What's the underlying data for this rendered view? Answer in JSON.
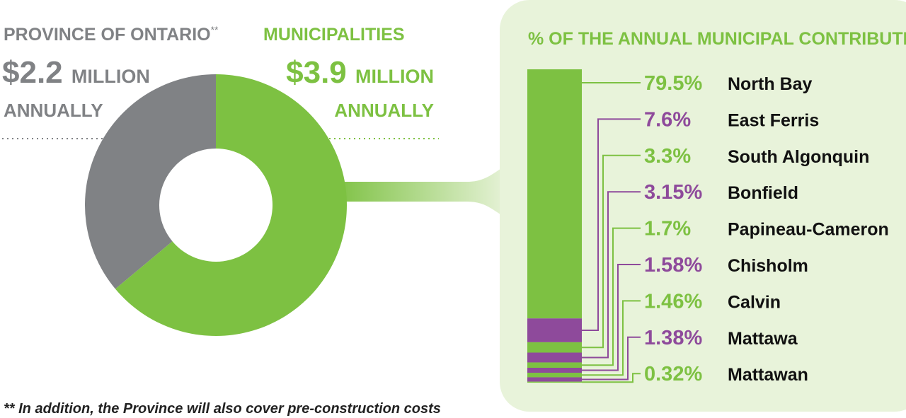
{
  "chart_data": [
    {
      "type": "pie",
      "categories": [
        "PROVINCE OF ONTARIO",
        "MUNICIPALITIES"
      ],
      "values": [
        2.2,
        3.9
      ],
      "value_labels": [
        "$2.2",
        "$3.9"
      ],
      "colors": [
        "#808285",
        "#7dc142"
      ],
      "note_marker": "**",
      "unit": "MILLION",
      "period": "ANNUALLY"
    },
    {
      "type": "stacked-bar",
      "title": "% OF THE ANNUAL MUNICIPAL CONTRIBUTION",
      "categories": [
        "North Bay",
        "East Ferris",
        "South Algonquin",
        "Bonfield",
        "Papineau-Cameron",
        "Chisholm",
        "Calvin",
        "Mattawa",
        "Mattawan"
      ],
      "values": [
        79.5,
        7.6,
        3.3,
        3.15,
        1.7,
        1.58,
        1.46,
        1.38,
        0.32
      ],
      "value_labels": [
        "79.5%",
        "7.6%",
        "3.3%",
        "3.15%",
        "1.7%",
        "1.58%",
        "1.46%",
        "1.38%",
        "0.32%"
      ],
      "colors": [
        "#7dc142",
        "#8e4a9b",
        "#7dc142",
        "#8e4a9b",
        "#7dc142",
        "#8e4a9b",
        "#7dc142",
        "#8e4a9b",
        "#7dc142"
      ]
    }
  ],
  "footnote": "** In addition, the Province will also cover pre-construction costs"
}
